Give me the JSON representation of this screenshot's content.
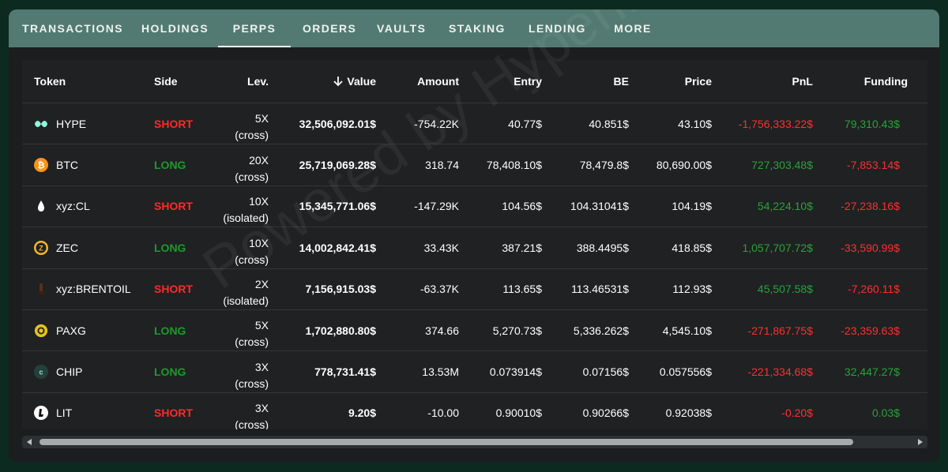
{
  "tabs": [
    {
      "label": "TRANSACTIONS",
      "active": false
    },
    {
      "label": "HOLDINGS",
      "active": false
    },
    {
      "label": "PERPS",
      "active": true
    },
    {
      "label": "ORDERS",
      "active": false
    },
    {
      "label": "VAULTS",
      "active": false
    },
    {
      "label": "STAKING",
      "active": false
    },
    {
      "label": "LENDING",
      "active": false
    },
    {
      "label": "MORE",
      "active": false
    }
  ],
  "columns": {
    "token": "Token",
    "side": "Side",
    "lev": "Lev.",
    "value": "Value",
    "amount": "Amount",
    "entry": "Entry",
    "be": "BE",
    "price": "Price",
    "pnl": "PnL",
    "funding": "Funding"
  },
  "sort_icon": "arrow-down-icon",
  "watermark": "Powered by Hyperliquid",
  "rows": [
    {
      "token": "HYPE",
      "icon": "hype-icon",
      "side": "SHORT",
      "lev": "5X",
      "mode": "(cross)",
      "value": "32,506,092.01$",
      "amount": "-754.22K",
      "entry": "40.77$",
      "be": "40.851$",
      "price": "43.10$",
      "pnl": "-1,756,333.22$",
      "funding": "79,310.43$"
    },
    {
      "token": "BTC",
      "icon": "btc-icon",
      "side": "LONG",
      "lev": "20X",
      "mode": "(cross)",
      "value": "25,719,069.28$",
      "amount": "318.74",
      "entry": "78,408.10$",
      "be": "78,479.8$",
      "price": "80,690.00$",
      "pnl": "727,303.48$",
      "funding": "-7,853.14$"
    },
    {
      "token": "xyz:CL",
      "icon": "oil-drop-icon",
      "side": "SHORT",
      "lev": "10X",
      "mode": "(isolated)",
      "value": "15,345,771.06$",
      "amount": "-147.29K",
      "entry": "104.56$",
      "be": "104.31041$",
      "price": "104.19$",
      "pnl": "54,224.10$",
      "funding": "-27,238.16$"
    },
    {
      "token": "ZEC",
      "icon": "zec-icon",
      "side": "LONG",
      "lev": "10X",
      "mode": "(cross)",
      "value": "14,002,842.41$",
      "amount": "33.43K",
      "entry": "387.21$",
      "be": "388.4495$",
      "price": "418.85$",
      "pnl": "1,057,707.72$",
      "funding": "-33,590.99$"
    },
    {
      "token": "xyz:BRENTOIL",
      "icon": "brentoil-icon",
      "side": "SHORT",
      "lev": "2X",
      "mode": "(isolated)",
      "value": "7,156,915.03$",
      "amount": "-63.37K",
      "entry": "113.65$",
      "be": "113.46531$",
      "price": "112.93$",
      "pnl": "45,507.58$",
      "funding": "-7,260.11$"
    },
    {
      "token": "PAXG",
      "icon": "paxg-icon",
      "side": "LONG",
      "lev": "5X",
      "mode": "(cross)",
      "value": "1,702,880.80$",
      "amount": "374.66",
      "entry": "5,270.73$",
      "be": "5,336.262$",
      "price": "4,545.10$",
      "pnl": "-271,867.75$",
      "funding": "-23,359.63$"
    },
    {
      "token": "CHIP",
      "icon": "chip-icon",
      "side": "LONG",
      "lev": "3X",
      "mode": "(cross)",
      "value": "778,731.41$",
      "amount": "13.53M",
      "entry": "0.073914$",
      "be": "0.07156$",
      "price": "0.057556$",
      "pnl": "-221,334.68$",
      "funding": "32,447.27$"
    },
    {
      "token": "LIT",
      "icon": "lit-icon",
      "side": "SHORT",
      "lev": "3X",
      "mode": "(cross)",
      "value": "9.20$",
      "amount": "-10.00",
      "entry": "0.90010$",
      "be": "0.90266$",
      "price": "0.92038$",
      "pnl": "-0.20$",
      "funding": "0.03$"
    }
  ],
  "colors": {
    "short": "#ff2a2a",
    "long": "#1e9a2a",
    "tabbar": "#527a72",
    "page": "#0c2a1f"
  }
}
